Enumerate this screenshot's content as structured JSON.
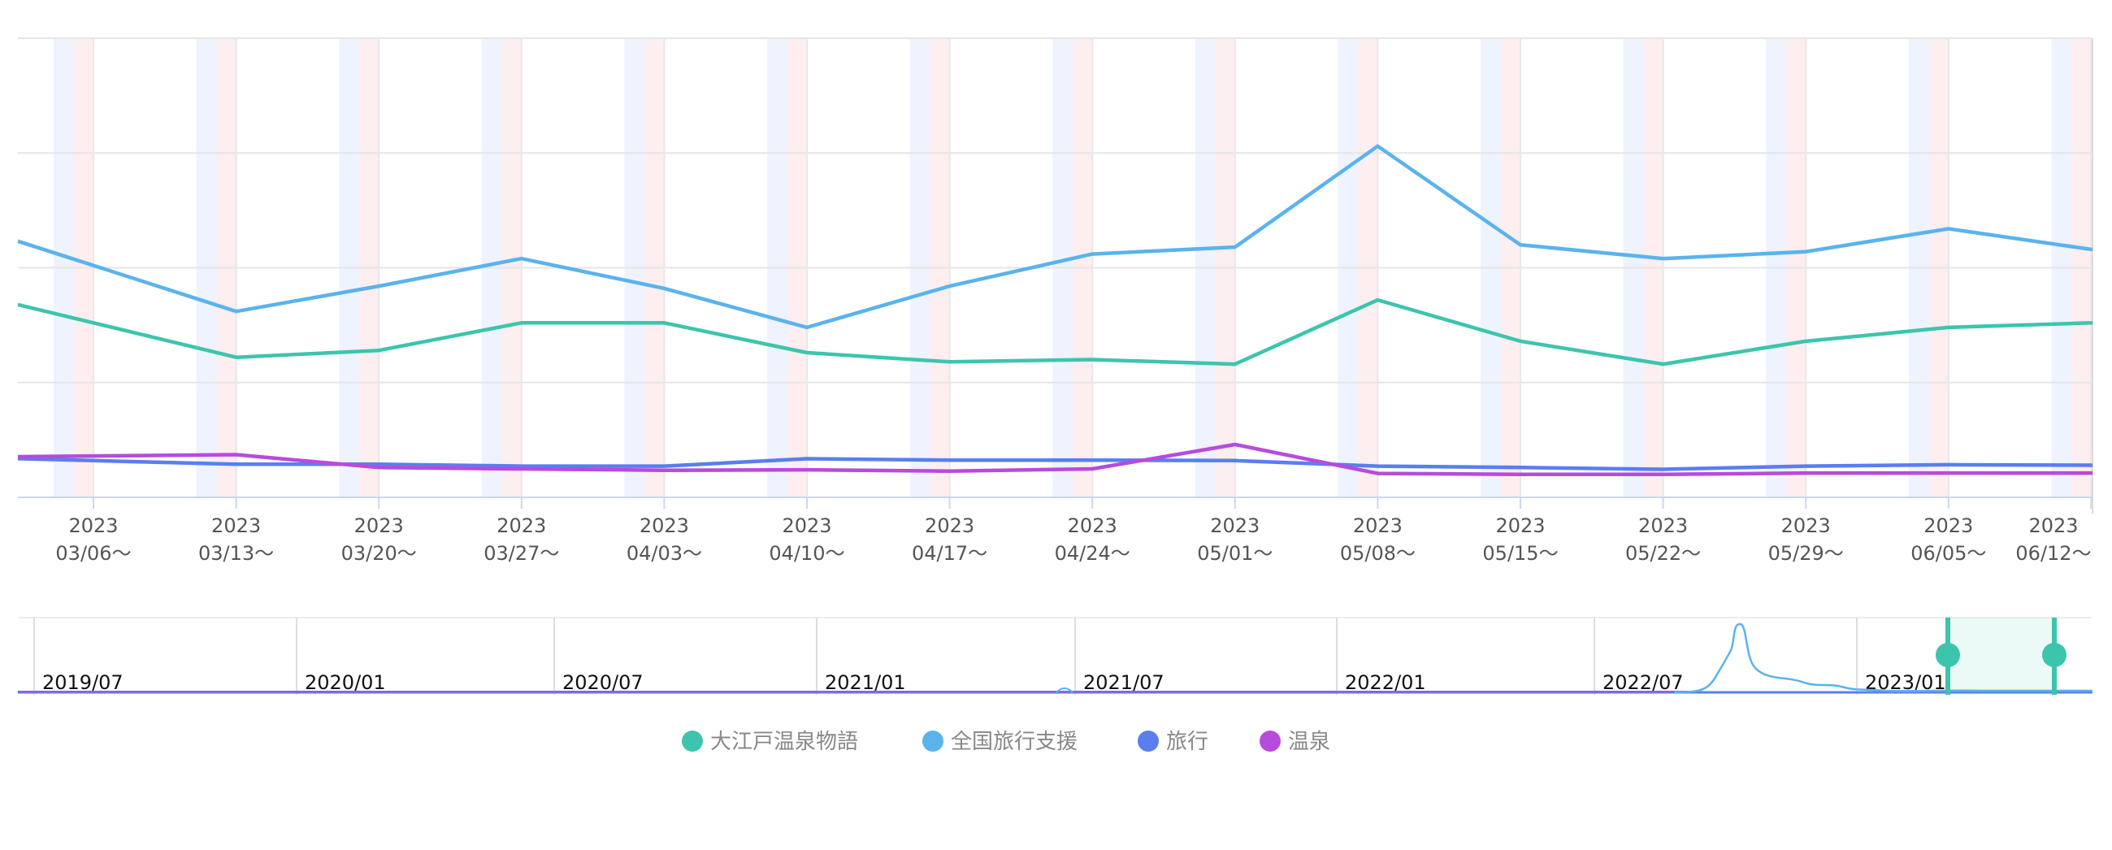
{
  "chart_data": {
    "type": "line",
    "x_ticks": [
      {
        "year": "2023",
        "date": "03/06〜"
      },
      {
        "year": "2023",
        "date": "03/13〜"
      },
      {
        "year": "2023",
        "date": "03/20〜"
      },
      {
        "year": "2023",
        "date": "03/27〜"
      },
      {
        "year": "2023",
        "date": "04/03〜"
      },
      {
        "year": "2023",
        "date": "04/10〜"
      },
      {
        "year": "2023",
        "date": "04/17〜"
      },
      {
        "year": "2023",
        "date": "04/24〜"
      },
      {
        "year": "2023",
        "date": "05/01〜"
      },
      {
        "year": "2023",
        "date": "05/08〜"
      },
      {
        "year": "2023",
        "date": "05/15〜"
      },
      {
        "year": "2023",
        "date": "05/22〜"
      },
      {
        "year": "2023",
        "date": "05/29〜"
      },
      {
        "year": "2023",
        "date": "06/05〜"
      },
      {
        "year": "2023",
        "date": "06/12〜"
      }
    ],
    "ylim": [
      0,
      100
    ],
    "grid": true,
    "legend_position": "bottom",
    "series": [
      {
        "name": "大江戸温泉物語",
        "color": "#3cc5ac",
        "values": [
          38,
          30.5,
          32,
          38,
          38,
          31.5,
          29.5,
          30,
          29,
          43,
          34,
          29,
          34,
          37,
          38
        ]
      },
      {
        "name": "全国旅行支援",
        "color": "#5ab3ec",
        "values": [
          50.5,
          40.5,
          46,
          52,
          45.5,
          37,
          46,
          53,
          54.5,
          76.5,
          55,
          52,
          53.5,
          58.5,
          54
        ]
      },
      {
        "name": "旅行",
        "color": "#5a7ef0",
        "values": [
          8,
          7.2,
          7.2,
          6.8,
          6.8,
          8.4,
          8.1,
          8.1,
          8,
          6.8,
          6.5,
          6.1,
          6.8,
          7.1,
          7
        ]
      },
      {
        "name": "温泉",
        "color": "#b74bdc",
        "values": [
          9,
          9.3,
          6.5,
          6.2,
          5.9,
          6,
          5.7,
          6.2,
          11.5,
          5.2,
          5,
          5,
          5.3,
          5.3,
          5.3
        ]
      }
    ],
    "navigator": {
      "labels": [
        "2019/07",
        "2020/01",
        "2020/07",
        "2021/01",
        "2021/07",
        "2022/01",
        "2022/07",
        "2023/01"
      ],
      "handle_color": "#3cc5ac"
    }
  }
}
